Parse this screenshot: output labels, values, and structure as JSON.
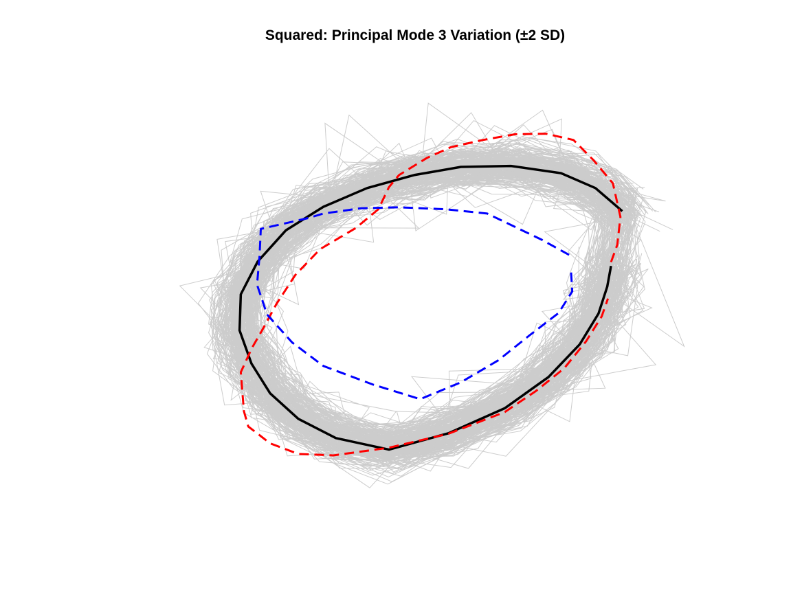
{
  "chart_data": {
    "type": "line",
    "title": "Squared: Principal Mode 3 Variation (±2 SD)",
    "axes_visible": false,
    "grid": false,
    "legend": "none",
    "xlim": [
      0,
      100
    ],
    "ylim": [
      0,
      100
    ],
    "background_samples": {
      "color": "#cccccc",
      "count": 260,
      "seed": 7,
      "base_shape": "mean"
    },
    "series": [
      {
        "style": "solid",
        "color": "#000000",
        "x": [
          82.8,
          78.5,
          73.0,
          65.0,
          57.0,
          49.5,
          42.0,
          35.0,
          29.0,
          24.5,
          21.8,
          21.6,
          23.5,
          26.5,
          31.0,
          37.0,
          45.5,
          55.0,
          64.0,
          71.0,
          76.0,
          79.0,
          80.4,
          81.0
        ],
        "y": [
          66.8,
          71.6,
          74.7,
          76.2,
          76.0,
          74.3,
          71.6,
          67.7,
          62.8,
          56.3,
          49.5,
          42.0,
          35.1,
          28.9,
          23.6,
          19.6,
          17.2,
          20.6,
          25.8,
          32.3,
          39.1,
          45.5,
          51.1,
          55.4
        ]
      },
      {
        "style": "dashed",
        "color": "#ff0000",
        "x": [
          81.0,
          82.0,
          82.5,
          81.3,
          78.2,
          75.0,
          70.6,
          65.7,
          60.5,
          55.4,
          51.6,
          47.1,
          45.5,
          43.8,
          40.2,
          34.5,
          30.5,
          27.5,
          25.2,
          23.6,
          21.8,
          22.3,
          23.0,
          26.5,
          31.0,
          36.6,
          45.5,
          55.0,
          64.0,
          69.0,
          73.5,
          77.0,
          79.5,
          80.5
        ],
        "y": [
          56.2,
          59.8,
          65.6,
          72.6,
          77.4,
          81.6,
          82.9,
          82.8,
          81.6,
          80.1,
          77.9,
          74.3,
          71.8,
          67.2,
          63.3,
          58.9,
          53.5,
          47.5,
          42.0,
          38.4,
          33.3,
          25.2,
          22.0,
          18.5,
          16.3,
          16.0,
          17.6,
          20.5,
          25.0,
          29.4,
          34.1,
          39.7,
          44.9,
          48.6
        ]
      },
      {
        "style": "dashed",
        "color": "#0000ff",
        "x": [
          74.3,
          70.0,
          61.2,
          54.5,
          47.0,
          41.0,
          35.0,
          32.7,
          25.0,
          24.8,
          24.4,
          26.0,
          30.0,
          35.0,
          43.0,
          50.5,
          57.0,
          63.0,
          68.0,
          72.6,
          74.8,
          74.6
        ],
        "y": [
          57.7,
          60.8,
          66.3,
          67.2,
          67.6,
          67.4,
          66.3,
          65.4,
          63.1,
          57.5,
          51.5,
          45.3,
          39.5,
          34.6,
          30.7,
          27.7,
          31.2,
          35.8,
          41.0,
          45.6,
          50.1,
          54.3
        ]
      }
    ]
  }
}
